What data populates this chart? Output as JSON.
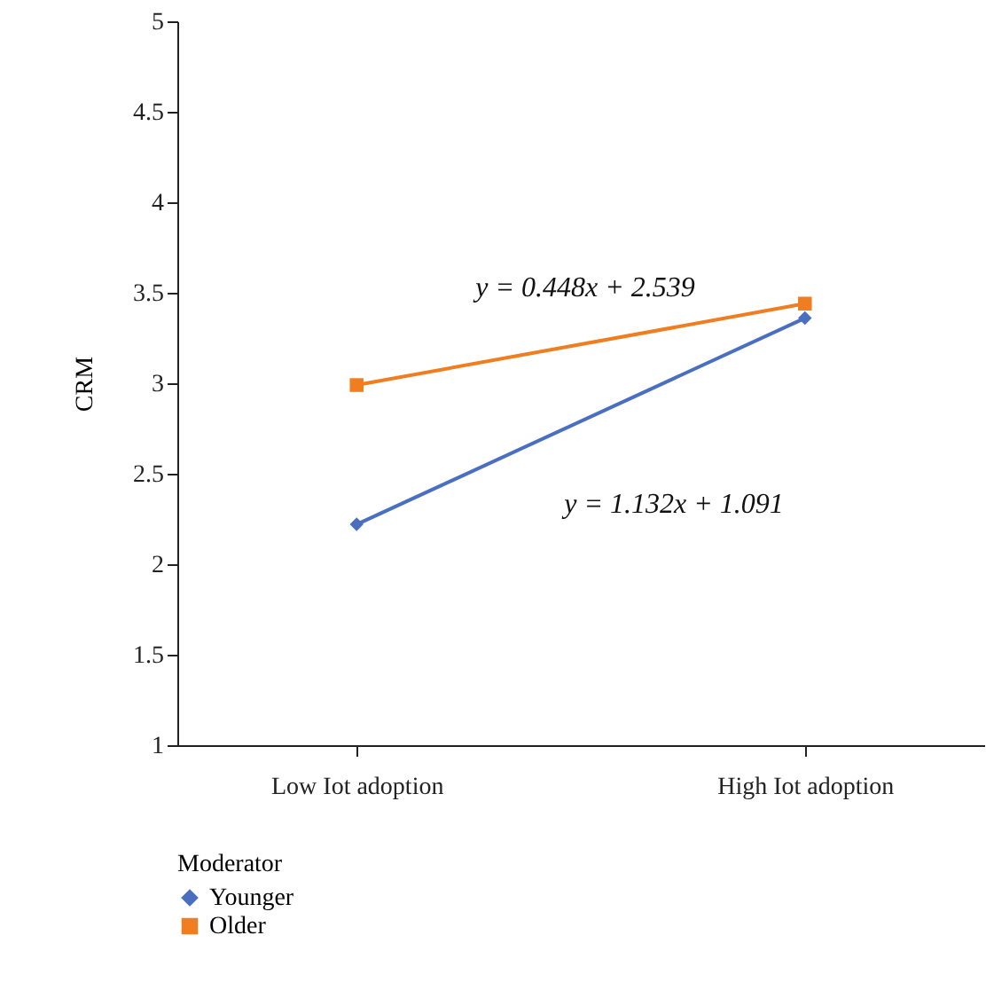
{
  "chart_data": {
    "type": "line",
    "ylabel": "CRM",
    "categories": [
      "Low Iot adoption",
      "High Iot adoption"
    ],
    "series": [
      {
        "name": "Younger",
        "color": "#4a6fc0",
        "marker": "diamond",
        "values": [
          2.22,
          3.36
        ]
      },
      {
        "name": "Older",
        "color": "#f07d20",
        "marker": "square",
        "values": [
          2.99,
          3.44
        ]
      }
    ],
    "ylim": [
      1,
      5
    ],
    "yticks": [
      1,
      1.5,
      2,
      2.5,
      3,
      3.5,
      4,
      4.5,
      5
    ],
    "grid": false,
    "legend": "bottom",
    "legend_title": "Moderator",
    "annotations": [
      "y = 0.448x + 2.539",
      "y = 1.132x + 1.091"
    ]
  }
}
